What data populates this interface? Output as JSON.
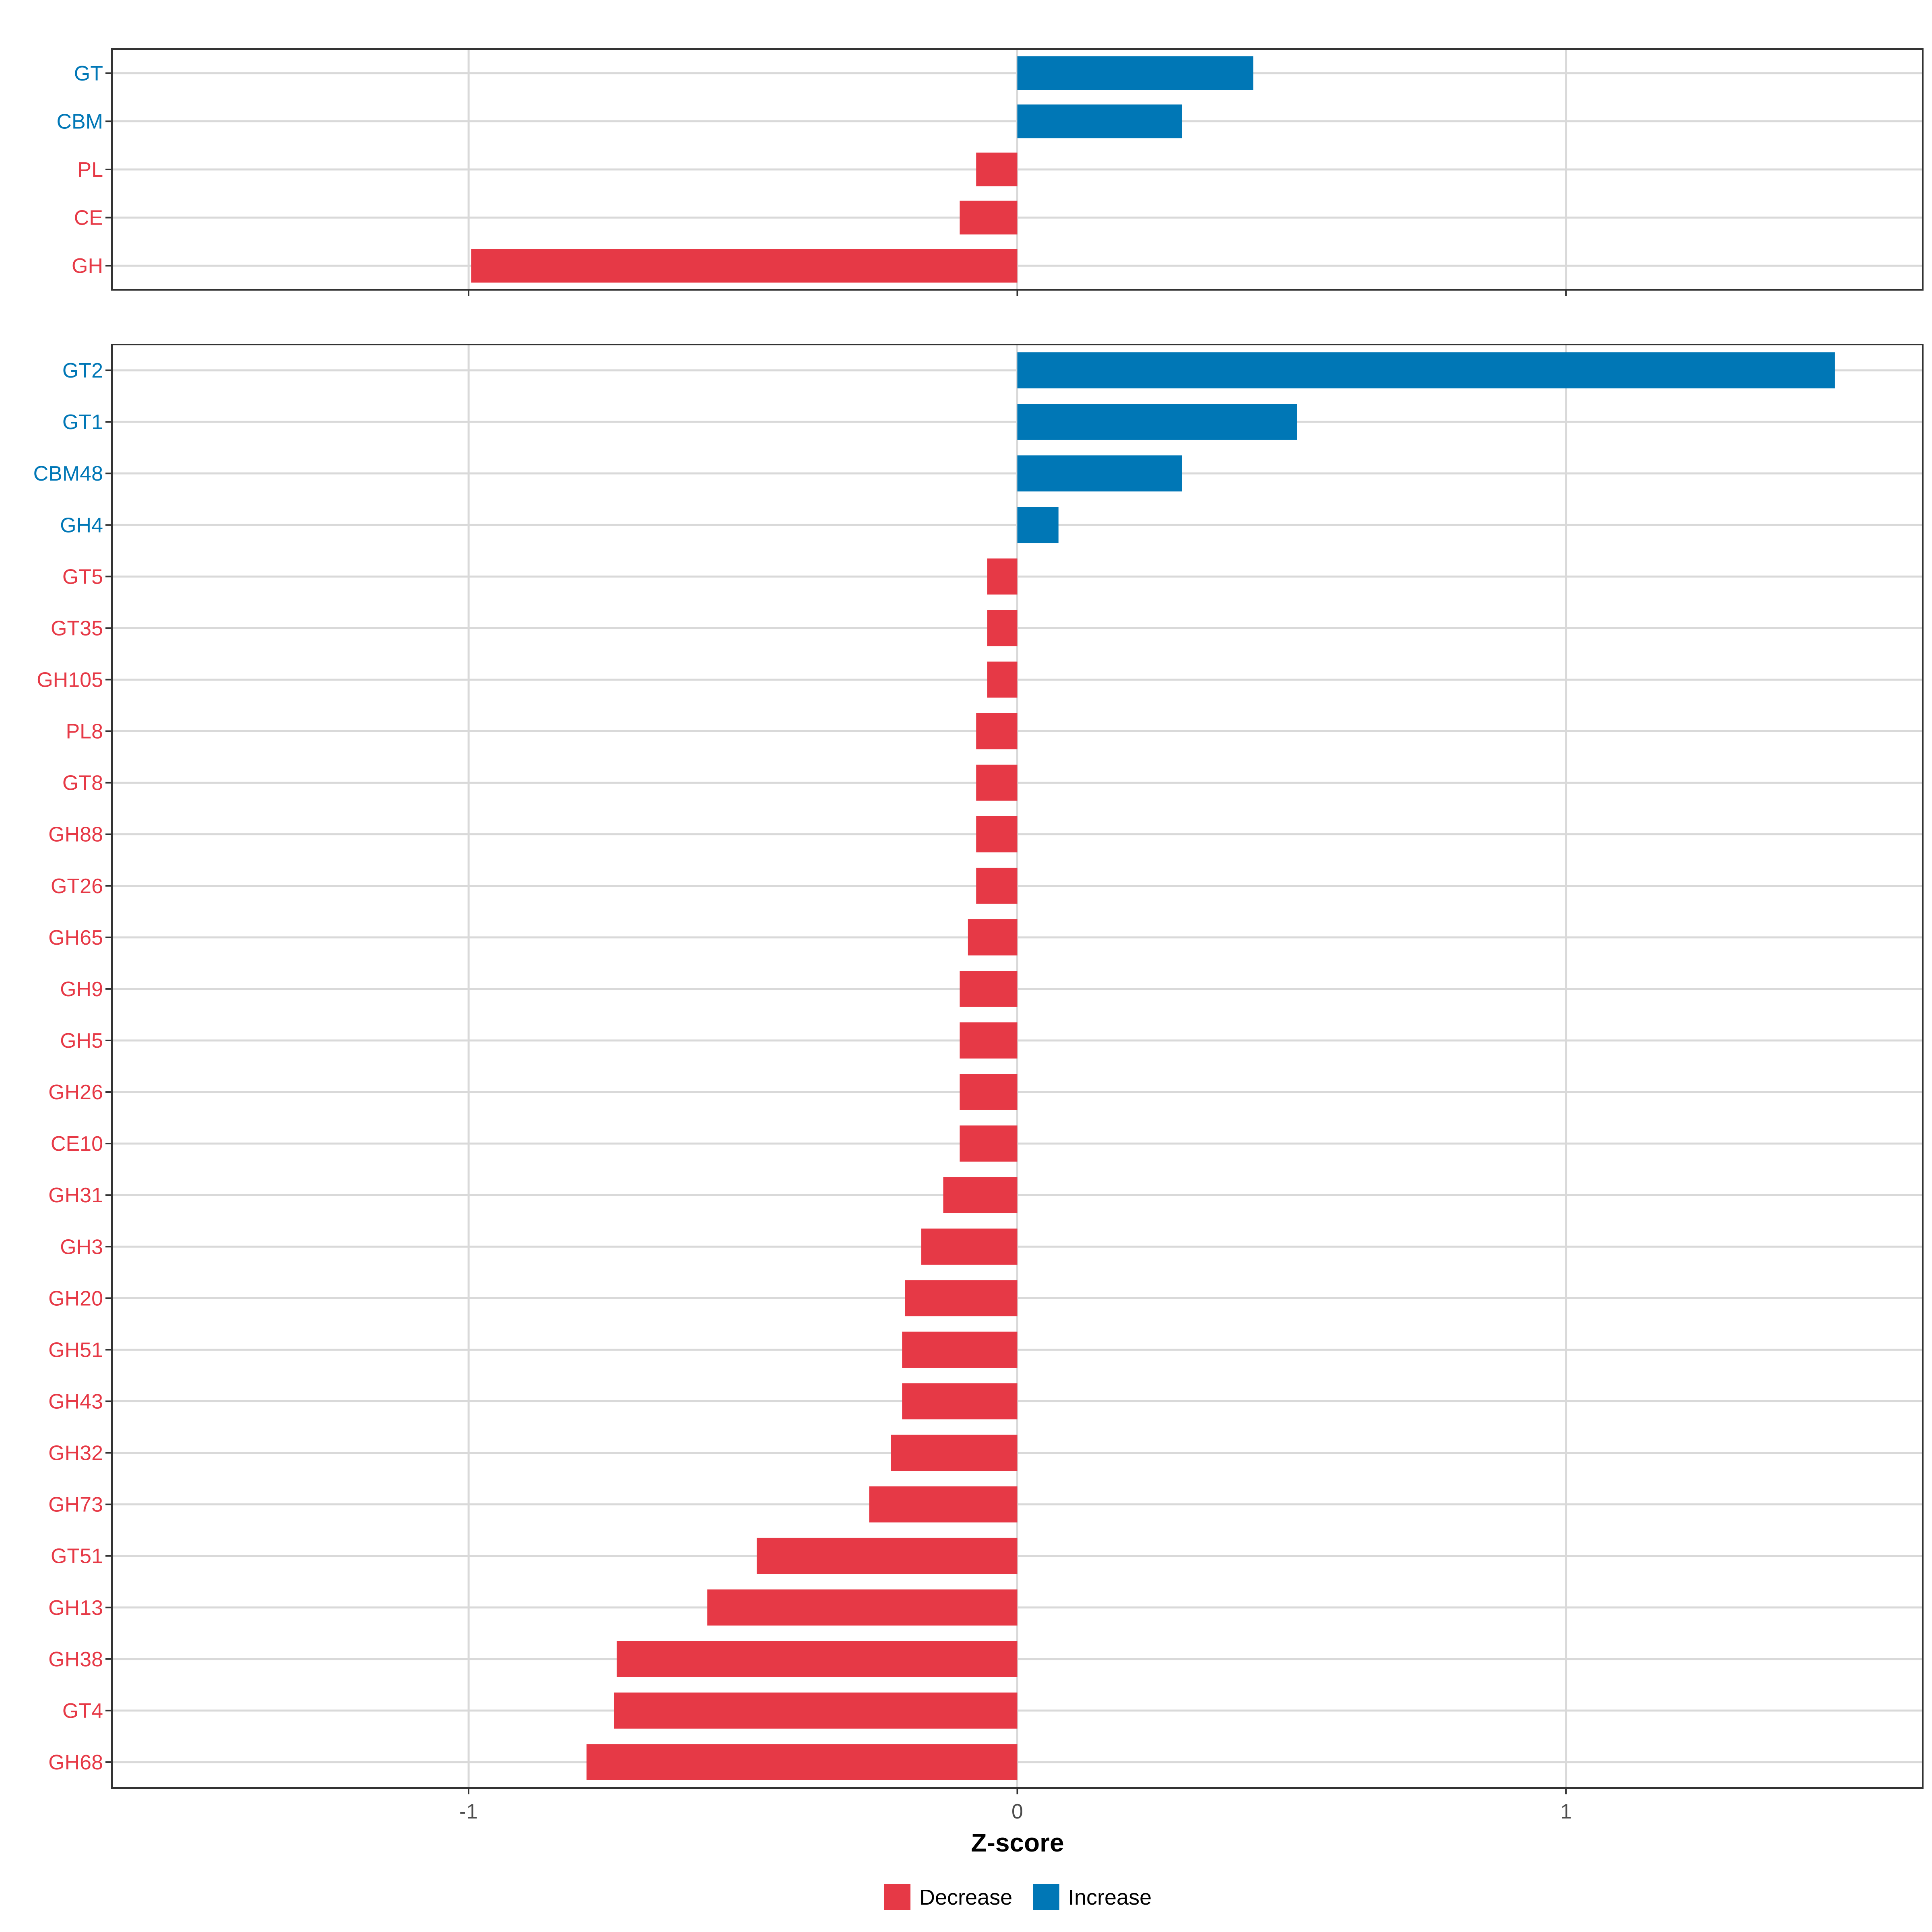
{
  "chart_data": {
    "type": "bar",
    "orientation": "horizontal",
    "xlabel": "Z-score",
    "xlim": [
      -1.65,
      1.65
    ],
    "xticks": [
      -1,
      0,
      1
    ],
    "xtick_labels": [
      "-1",
      "0",
      "1"
    ],
    "grid": true,
    "legend_position": "bottom",
    "legend": [
      {
        "key": "decrease",
        "label": "Decrease",
        "color": "#e63946"
      },
      {
        "key": "increase",
        "label": "Increase",
        "color": "#0077b6"
      }
    ],
    "panels": [
      {
        "name": "family-class",
        "categories": [
          "GT",
          "CBM",
          "PL",
          "CE",
          "GH"
        ],
        "values": [
          0.43,
          0.3,
          -0.075,
          -0.105,
          -0.995
        ]
      },
      {
        "name": "family",
        "categories": [
          "GT2",
          "GT1",
          "CBM48",
          "GH4",
          "GT5",
          "GT35",
          "GH105",
          "PL8",
          "GT8",
          "GH88",
          "GT26",
          "GH65",
          "GH9",
          "GH5",
          "GH26",
          "CE10",
          "GH31",
          "GH3",
          "GH20",
          "GH51",
          "GH43",
          "GH32",
          "GH73",
          "GT51",
          "GH13",
          "GH38",
          "GT4",
          "GH68"
        ],
        "values": [
          1.49,
          0.51,
          0.3,
          0.075,
          -0.055,
          -0.055,
          -0.055,
          -0.075,
          -0.075,
          -0.075,
          -0.075,
          -0.09,
          -0.105,
          -0.105,
          -0.105,
          -0.105,
          -0.135,
          -0.175,
          -0.205,
          -0.21,
          -0.21,
          -0.23,
          -0.27,
          -0.475,
          -0.565,
          -0.73,
          -0.735,
          -0.785
        ]
      }
    ]
  }
}
